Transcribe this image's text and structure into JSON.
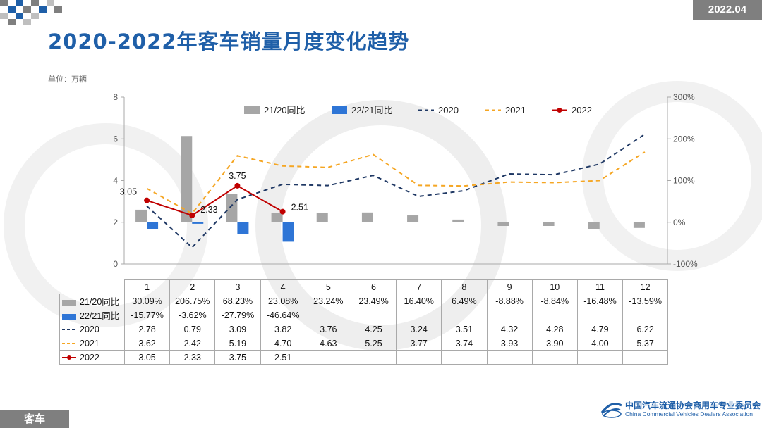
{
  "date_badge": "2022.04",
  "title": "2020-2022年客车销量月度变化趋势",
  "unit_label": "单位：万辆",
  "bottom_tag": "客车",
  "footer": {
    "org_cn": "中国汽车流通协会商用车专业委员会",
    "org_en": "China Commercial Vehicles Dealers Association"
  },
  "colors": {
    "accent": "#1f5fa8",
    "bar_21_20": "#a6a6a6",
    "bar_22_21": "#2e75d6",
    "line_2020": "#1f3864",
    "line_2021": "#f5a623",
    "line_2022": "#c00000"
  },
  "chart_data": {
    "type": "bar+line",
    "categories": [
      "1",
      "2",
      "3",
      "4",
      "5",
      "6",
      "7",
      "8",
      "9",
      "10",
      "11",
      "12"
    ],
    "y_left": {
      "ticks": [
        "0",
        "2",
        "4",
        "6",
        "8"
      ],
      "range": [
        0,
        8
      ]
    },
    "y_right": {
      "ticks": [
        "-100%",
        "0%",
        "100%",
        "200%",
        "300%"
      ],
      "range": [
        -100,
        300
      ]
    },
    "grid": false,
    "legend_position": "top",
    "bars": [
      {
        "name": "21/20同比",
        "axis": "right",
        "values": [
          30.09,
          206.75,
          68.23,
          23.08,
          23.24,
          23.49,
          16.4,
          6.49,
          -8.88,
          -8.84,
          -16.48,
          -13.59
        ],
        "labels": [
          "30.09%",
          "206.75%",
          "68.23%",
          "23.08%",
          "23.24%",
          "23.49%",
          "16.40%",
          "6.49%",
          "-8.88%",
          "-8.84%",
          "-16.48%",
          "-13.59%"
        ]
      },
      {
        "name": "22/21同比",
        "axis": "right",
        "values": [
          -15.77,
          -3.62,
          -27.79,
          -46.64
        ],
        "labels": [
          "-15.77%",
          "-3.62%",
          "-27.79%",
          "-46.64%"
        ]
      }
    ],
    "lines": [
      {
        "name": "2020",
        "style": "dashed",
        "values": [
          2.78,
          0.79,
          3.09,
          3.82,
          3.76,
          4.25,
          3.24,
          3.51,
          4.32,
          4.28,
          4.79,
          6.22
        ],
        "labels": [
          "2.78",
          "0.79",
          "3.09",
          "3.82",
          "3.76",
          "4.25",
          "3.24",
          "3.51",
          "4.32",
          "4.28",
          "4.79",
          "6.22"
        ]
      },
      {
        "name": "2021",
        "style": "dashed",
        "values": [
          3.62,
          2.42,
          5.19,
          4.7,
          4.63,
          5.25,
          3.77,
          3.74,
          3.93,
          3.9,
          4.0,
          5.37
        ],
        "labels": [
          "3.62",
          "2.42",
          "5.19",
          "4.70",
          "4.63",
          "5.25",
          "3.77",
          "3.74",
          "3.93",
          "3.90",
          "4.00",
          "5.37"
        ]
      },
      {
        "name": "2022",
        "style": "solid-marker",
        "values": [
          3.05,
          2.33,
          3.75,
          2.51
        ],
        "labels": [
          "3.05",
          "2.33",
          "3.75",
          "2.51"
        ]
      }
    ]
  }
}
